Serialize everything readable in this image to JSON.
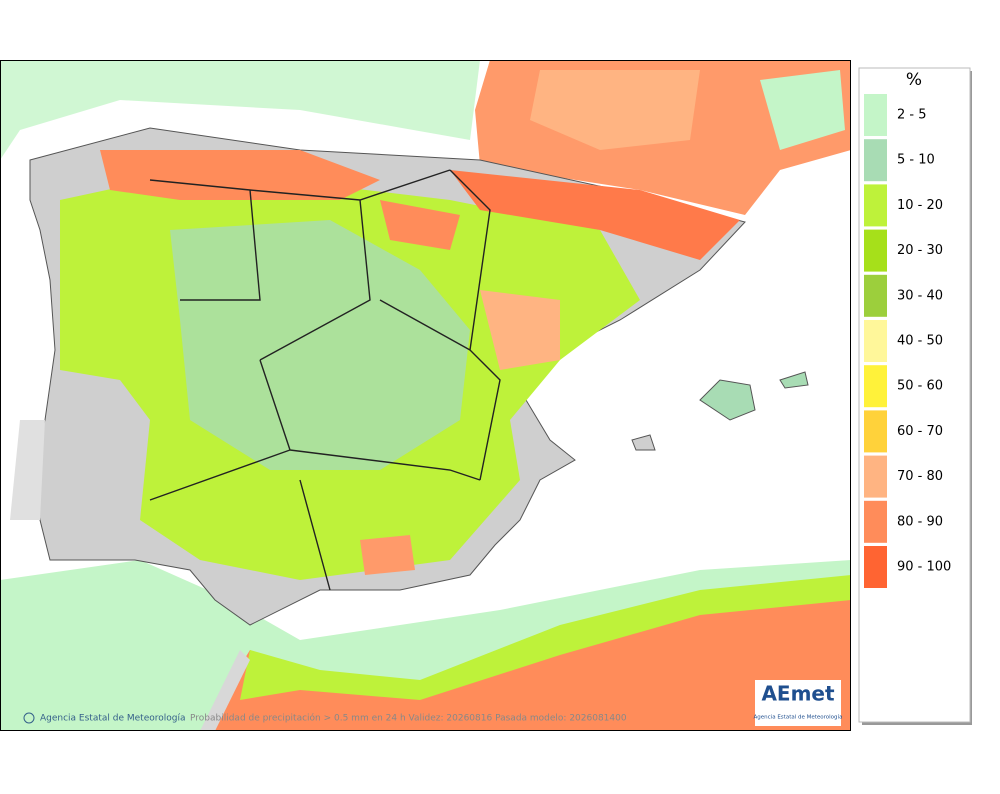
{
  "legend": {
    "title": "%",
    "items": [
      {
        "label": "2 - 5",
        "color": "#c4f5c8"
      },
      {
        "label": "5 - 10",
        "color": "#a8dcb4"
      },
      {
        "label": "10 - 20",
        "color": "#bef23a"
      },
      {
        "label": "20 - 30",
        "color": "#a6e01a"
      },
      {
        "label": "30 - 40",
        "color": "#9ccf3c"
      },
      {
        "label": "40 - 50",
        "color": "#fff79a"
      },
      {
        "label": "50 - 60",
        "color": "#fff23a"
      },
      {
        "label": "60 - 70",
        "color": "#ffd23a"
      },
      {
        "label": "70 - 80",
        "color": "#ffb482"
      },
      {
        "label": "80 - 90",
        "color": "#ff8c5a"
      },
      {
        "label": "90 - 100",
        "color": "#ff6432"
      }
    ]
  },
  "footer": {
    "credit": "Agencia Estatal de Meteorología",
    "caption": "Probabilidad de precipitación > 0.5 mm en 24 h Validez: 20260816 Pasada modelo: 2026081400"
  },
  "logo": {
    "name": "AEmet",
    "subtitle": "Agencia Estatal de Meteorología"
  }
}
